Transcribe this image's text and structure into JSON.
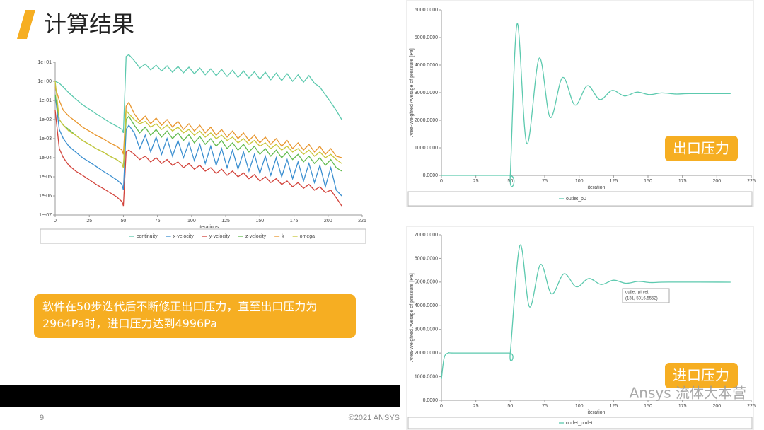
{
  "slide": {
    "title": "计算结果",
    "callout": "软件在50步迭代后不断修正出口压力，直至出口压力为2964Pa时，进口压力达到4996Pa",
    "badges": [
      "出口压力",
      "进口压力"
    ],
    "page_number": "9",
    "copyright": "©2021 ANSYS",
    "watermark": "Ansys 流体大本营"
  },
  "chart_data": [
    {
      "type": "line",
      "log_y": true,
      "x_label": "iterations",
      "xlim": [
        0,
        225
      ],
      "xticks": [
        0,
        25,
        50,
        75,
        100,
        125,
        150,
        175,
        200,
        225
      ],
      "ylim": [
        1e-07,
        10
      ],
      "yticks": [
        {
          "value": 1e-07,
          "label": "1e-07"
        },
        {
          "value": 1e-06,
          "label": "1e-06"
        },
        {
          "value": 1e-05,
          "label": "1e-05"
        },
        {
          "value": 0.0001,
          "label": "1e-04"
        },
        {
          "value": 0.001,
          "label": "1e-03"
        },
        {
          "value": 0.01,
          "label": "1e-02"
        },
        {
          "value": 0.1,
          "label": "1e-01"
        },
        {
          "value": 1,
          "label": "1e+00"
        },
        {
          "value": 10,
          "label": "1e+01"
        }
      ],
      "x": [
        0,
        3,
        6,
        10,
        15,
        20,
        25,
        30,
        35,
        40,
        45,
        49,
        50,
        52,
        54,
        58,
        62,
        66,
        70,
        74,
        78,
        82,
        86,
        90,
        94,
        98,
        102,
        106,
        110,
        114,
        118,
        122,
        126,
        130,
        134,
        138,
        142,
        146,
        150,
        154,
        158,
        162,
        166,
        170,
        174,
        178,
        182,
        186,
        190,
        194,
        198,
        202,
        206,
        210
      ],
      "series": [
        {
          "name": "continuity",
          "color": "#5cc9ae",
          "values": [
            1,
            0.8,
            0.5,
            0.25,
            0.12,
            0.06,
            0.035,
            0.02,
            0.012,
            0.007,
            0.0045,
            0.003,
            0.002,
            20,
            25,
            12,
            5,
            8,
            4,
            7,
            3.5,
            6.5,
            3,
            6,
            2.8,
            5.5,
            2.5,
            5,
            2.2,
            4.5,
            2,
            4.2,
            1.8,
            3.8,
            1.6,
            3.5,
            1.5,
            3.2,
            1.3,
            3,
            1.2,
            2.7,
            1.1,
            2.5,
            1,
            2.2,
            0.9,
            2,
            0.8,
            0.5,
            0.2,
            0.08,
            0.03,
            0.01
          ]
        },
        {
          "name": "x-velocity",
          "color": "#3b8fd0",
          "values": [
            0.2,
            0.003,
            0.001,
            0.0004,
            0.0002,
            0.0001,
            6e-05,
            3.5e-05,
            2e-05,
            1.2e-05,
            7e-06,
            4e-06,
            2e-06,
            0.003,
            0.005,
            0.002,
            0.0003,
            0.0015,
            0.0002,
            0.0012,
            0.00015,
            0.001,
            0.00012,
            0.0008,
            0.0001,
            0.0006,
            7e-05,
            0.0005,
            5e-05,
            0.0004,
            4e-05,
            0.0003,
            3e-05,
            0.00025,
            2.5e-05,
            0.0002,
            2e-05,
            0.00015,
            1.5e-05,
            0.00012,
            1.2e-05,
            0.0001,
            1e-05,
            8e-05,
            8e-06,
            6e-05,
            6e-06,
            5e-05,
            5e-06,
            4e-05,
            3e-06,
            3e-05,
            2e-06,
            1e-06
          ]
        },
        {
          "name": "y-velocity",
          "color": "#d2423a",
          "values": [
            0.03,
            0.0003,
            0.0001,
            4e-05,
            2e-05,
            1.2e-05,
            7e-06,
            4e-06,
            2.5e-06,
            1.5e-06,
            9e-07,
            5e-07,
            3e-07,
            0.0002,
            0.00025,
            0.00015,
            8e-05,
            0.00012,
            6e-05,
            0.0001,
            5e-05,
            8e-05,
            4e-05,
            6e-05,
            3e-05,
            5e-05,
            2.5e-05,
            4e-05,
            2e-05,
            3e-05,
            1.5e-05,
            2.5e-05,
            1.2e-05,
            2e-05,
            1e-05,
            1.6e-05,
            8e-06,
            1.3e-05,
            6e-06,
            1e-05,
            5e-06,
            8e-06,
            4e-06,
            6e-06,
            3e-06,
            5e-06,
            2.5e-06,
            4e-06,
            2e-06,
            3e-06,
            1.5e-06,
            2e-06,
            8e-07,
            3e-07
          ]
        },
        {
          "name": "z-velocity",
          "color": "#62bb4e",
          "values": [
            0.2,
            0.01,
            0.005,
            0.003,
            0.0015,
            0.0008,
            0.0005,
            0.0003,
            0.0002,
            0.00012,
            8e-05,
            5e-05,
            3e-05,
            0.01,
            0.015,
            0.005,
            0.002,
            0.004,
            0.0015,
            0.003,
            0.0012,
            0.0025,
            0.001,
            0.002,
            0.0008,
            0.0016,
            0.0006,
            0.0013,
            0.0005,
            0.001,
            0.0004,
            0.0008,
            0.0003,
            0.0006,
            0.00025,
            0.0005,
            0.0002,
            0.0004,
            0.00015,
            0.0003,
            0.00012,
            0.00025,
            0.0001,
            0.0002,
            8e-05,
            0.00015,
            6e-05,
            0.00012,
            5e-05,
            0.0001,
            4e-05,
            8e-05,
            3e-05,
            2e-05
          ]
        },
        {
          "name": "k",
          "color": "#e8962e",
          "values": [
            0.5,
            0.1,
            0.03,
            0.015,
            0.008,
            0.004,
            0.0025,
            0.0015,
            0.001,
            0.0006,
            0.0004,
            0.00025,
            0.00015,
            0.05,
            0.08,
            0.02,
            0.008,
            0.015,
            0.006,
            0.012,
            0.005,
            0.01,
            0.004,
            0.008,
            0.003,
            0.006,
            0.0025,
            0.005,
            0.002,
            0.004,
            0.0015,
            0.003,
            0.0012,
            0.0025,
            0.001,
            0.002,
            0.0008,
            0.0015,
            0.0006,
            0.0012,
            0.0005,
            0.001,
            0.0004,
            0.0008,
            0.0003,
            0.0006,
            0.00025,
            0.0005,
            0.0002,
            0.0004,
            0.00015,
            0.0003,
            0.00012,
            0.0001
          ]
        },
        {
          "name": "omega",
          "color": "#c9c63a",
          "values": [
            1,
            0.01,
            0.005,
            0.0025,
            0.0015,
            0.0008,
            0.0005,
            0.0003,
            0.0002,
            0.00012,
            8e-05,
            5e-05,
            3e-05,
            0.03,
            0.02,
            0.01,
            0.006,
            0.008,
            0.004,
            0.006,
            0.003,
            0.005,
            0.0025,
            0.004,
            0.002,
            0.003,
            0.0015,
            0.0025,
            0.0012,
            0.002,
            0.001,
            0.0015,
            0.0008,
            0.0012,
            0.0006,
            0.001,
            0.0005,
            0.0008,
            0.0004,
            0.0006,
            0.0003,
            0.0005,
            0.00025,
            0.0004,
            0.0002,
            0.0003,
            0.00015,
            0.00025,
            0.00012,
            0.0002,
            0.0001,
            0.00015,
            8e-05,
            5e-05
          ]
        }
      ]
    },
    {
      "type": "line",
      "log_y": false,
      "smooth": true,
      "x_label": "iteration",
      "y_label": "Area-Weighted Average of pressure [Pa]",
      "xlim": [
        0,
        225
      ],
      "xticks": [
        0,
        25,
        50,
        75,
        100,
        125,
        150,
        175,
        200,
        225
      ],
      "ylim": [
        0,
        6000
      ],
      "yticks": [
        {
          "value": 0,
          "label": "0.0000"
        },
        {
          "value": 1000,
          "label": "1000.0000"
        },
        {
          "value": 2000,
          "label": "2000.0000"
        },
        {
          "value": 3000,
          "label": "3000.0000"
        },
        {
          "value": 4000,
          "label": "4000.0000"
        },
        {
          "value": 5000,
          "label": "5000.0000"
        },
        {
          "value": 6000,
          "label": "6000.0000"
        }
      ],
      "x": [
        0,
        49,
        50,
        55,
        62,
        71,
        79,
        88,
        97,
        106,
        115,
        124,
        133,
        142,
        151,
        160,
        170,
        180,
        210
      ],
      "series": [
        {
          "name": "outlet_p0",
          "color": "#5cc9ae",
          "values": [
            0,
            0,
            0,
            5500,
            1150,
            4250,
            2100,
            3550,
            2550,
            3250,
            2750,
            3080,
            2880,
            3020,
            2930,
            2990,
            2950,
            2964,
            2964
          ]
        }
      ]
    },
    {
      "type": "line",
      "log_y": false,
      "smooth": true,
      "x_label": "iteration",
      "y_label": "Area-Weighted Average of pressure [Pa]",
      "xlim": [
        0,
        225
      ],
      "xticks": [
        0,
        25,
        50,
        75,
        100,
        125,
        150,
        175,
        200,
        225
      ],
      "ylim": [
        0,
        7000
      ],
      "yticks": [
        {
          "value": 0,
          "label": "0.0000"
        },
        {
          "value": 1000,
          "label": "1000.0000"
        },
        {
          "value": 2000,
          "label": "2000.0000"
        },
        {
          "value": 3000,
          "label": "3000.0000"
        },
        {
          "value": 4000,
          "label": "4000.0000"
        },
        {
          "value": 5000,
          "label": "5000.0000"
        },
        {
          "value": 6000,
          "label": "6000.0000"
        },
        {
          "value": 7000,
          "label": "7000.0000"
        }
      ],
      "x": [
        0,
        2,
        5,
        10,
        49,
        50,
        57,
        64,
        72,
        80,
        89,
        98,
        107,
        116,
        125,
        134,
        143,
        152,
        165,
        210
      ],
      "series": [
        {
          "name": "outlet_pinlet",
          "color": "#5cc9ae",
          "values": [
            900,
            1800,
            2000,
            2000,
            2000,
            2000,
            6550,
            3950,
            5750,
            4500,
            5350,
            4800,
            5150,
            4900,
            5080,
            4950,
            5030,
            4980,
            5000,
            4996
          ]
        }
      ],
      "annotations": [
        "outlet_pinlet",
        "(131, 5016.5552)"
      ]
    }
  ]
}
